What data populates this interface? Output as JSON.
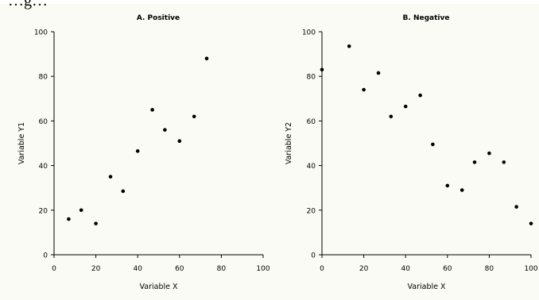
{
  "header_text": "…g…",
  "chart_data": [
    {
      "type": "scatter",
      "title": "A. Positive",
      "xlabel": "Variable X",
      "ylabel": "Variable Y1",
      "xlim": [
        0,
        100
      ],
      "ylim": [
        0,
        100
      ],
      "xticks": [
        0,
        20,
        40,
        60,
        80,
        100
      ],
      "yticks": [
        0,
        20,
        40,
        60,
        80,
        100
      ],
      "grid": false,
      "points": [
        {
          "x": 7,
          "y": 16
        },
        {
          "x": 13,
          "y": 20
        },
        {
          "x": 20,
          "y": 14
        },
        {
          "x": 27,
          "y": 35
        },
        {
          "x": 33,
          "y": 28.5
        },
        {
          "x": 40,
          "y": 46.5
        },
        {
          "x": 47,
          "y": 65
        },
        {
          "x": 53,
          "y": 56
        },
        {
          "x": 60,
          "y": 51
        },
        {
          "x": 67,
          "y": 62
        },
        {
          "x": 73,
          "y": 88
        }
      ]
    },
    {
      "type": "scatter",
      "title": "B. Negative",
      "xlabel": "Variable X",
      "ylabel": "Variable Y2",
      "xlim": [
        0,
        100
      ],
      "ylim": [
        0,
        100
      ],
      "xticks": [
        0,
        20,
        40,
        60,
        80,
        100
      ],
      "yticks": [
        0,
        20,
        40,
        60,
        80,
        100
      ],
      "grid": false,
      "points": [
        {
          "x": 0,
          "y": 83
        },
        {
          "x": 13,
          "y": 93.5
        },
        {
          "x": 20,
          "y": 74
        },
        {
          "x": 27,
          "y": 81.5
        },
        {
          "x": 33,
          "y": 62
        },
        {
          "x": 40,
          "y": 66.5
        },
        {
          "x": 47,
          "y": 71.5
        },
        {
          "x": 53,
          "y": 49.5
        },
        {
          "x": 60,
          "y": 31
        },
        {
          "x": 67,
          "y": 29
        },
        {
          "x": 73,
          "y": 41.5
        },
        {
          "x": 80,
          "y": 45.5
        },
        {
          "x": 87,
          "y": 41.5
        },
        {
          "x": 93,
          "y": 21.5
        },
        {
          "x": 100,
          "y": 14
        }
      ]
    }
  ]
}
